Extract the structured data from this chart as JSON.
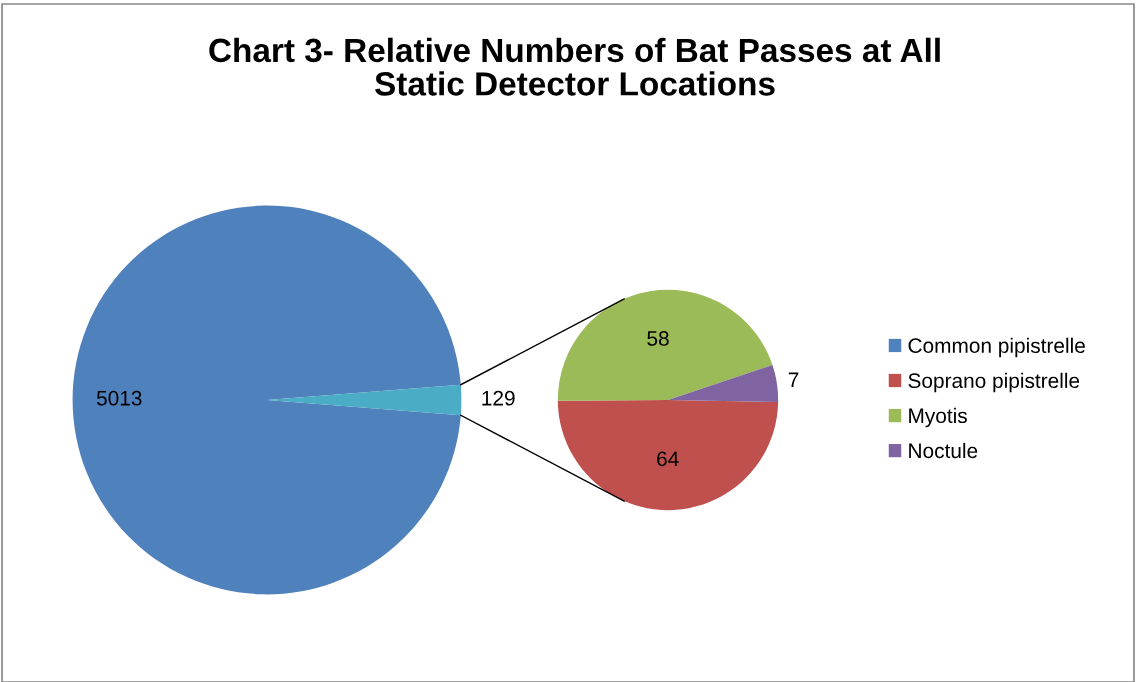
{
  "chart_data": [
    {
      "type": "pie",
      "title": "Chart 3- Relative Numbers of Bat Passes at All\nStatic Detector Locations",
      "categories": [
        "Common pipistrelle",
        null
      ],
      "values": [
        5013,
        129
      ],
      "colors": [
        "#4f81bd",
        "#4bacc6"
      ],
      "data_labels": true
    },
    {
      "type": "pie",
      "categories": [
        "Soprano pipistrelle",
        "Myotis",
        "Noctule"
      ],
      "values": [
        64,
        58,
        7
      ],
      "colors": [
        "#c0504d",
        "#9bbb59",
        "#8064a2"
      ],
      "data_labels": true,
      "legend": "right"
    }
  ]
}
